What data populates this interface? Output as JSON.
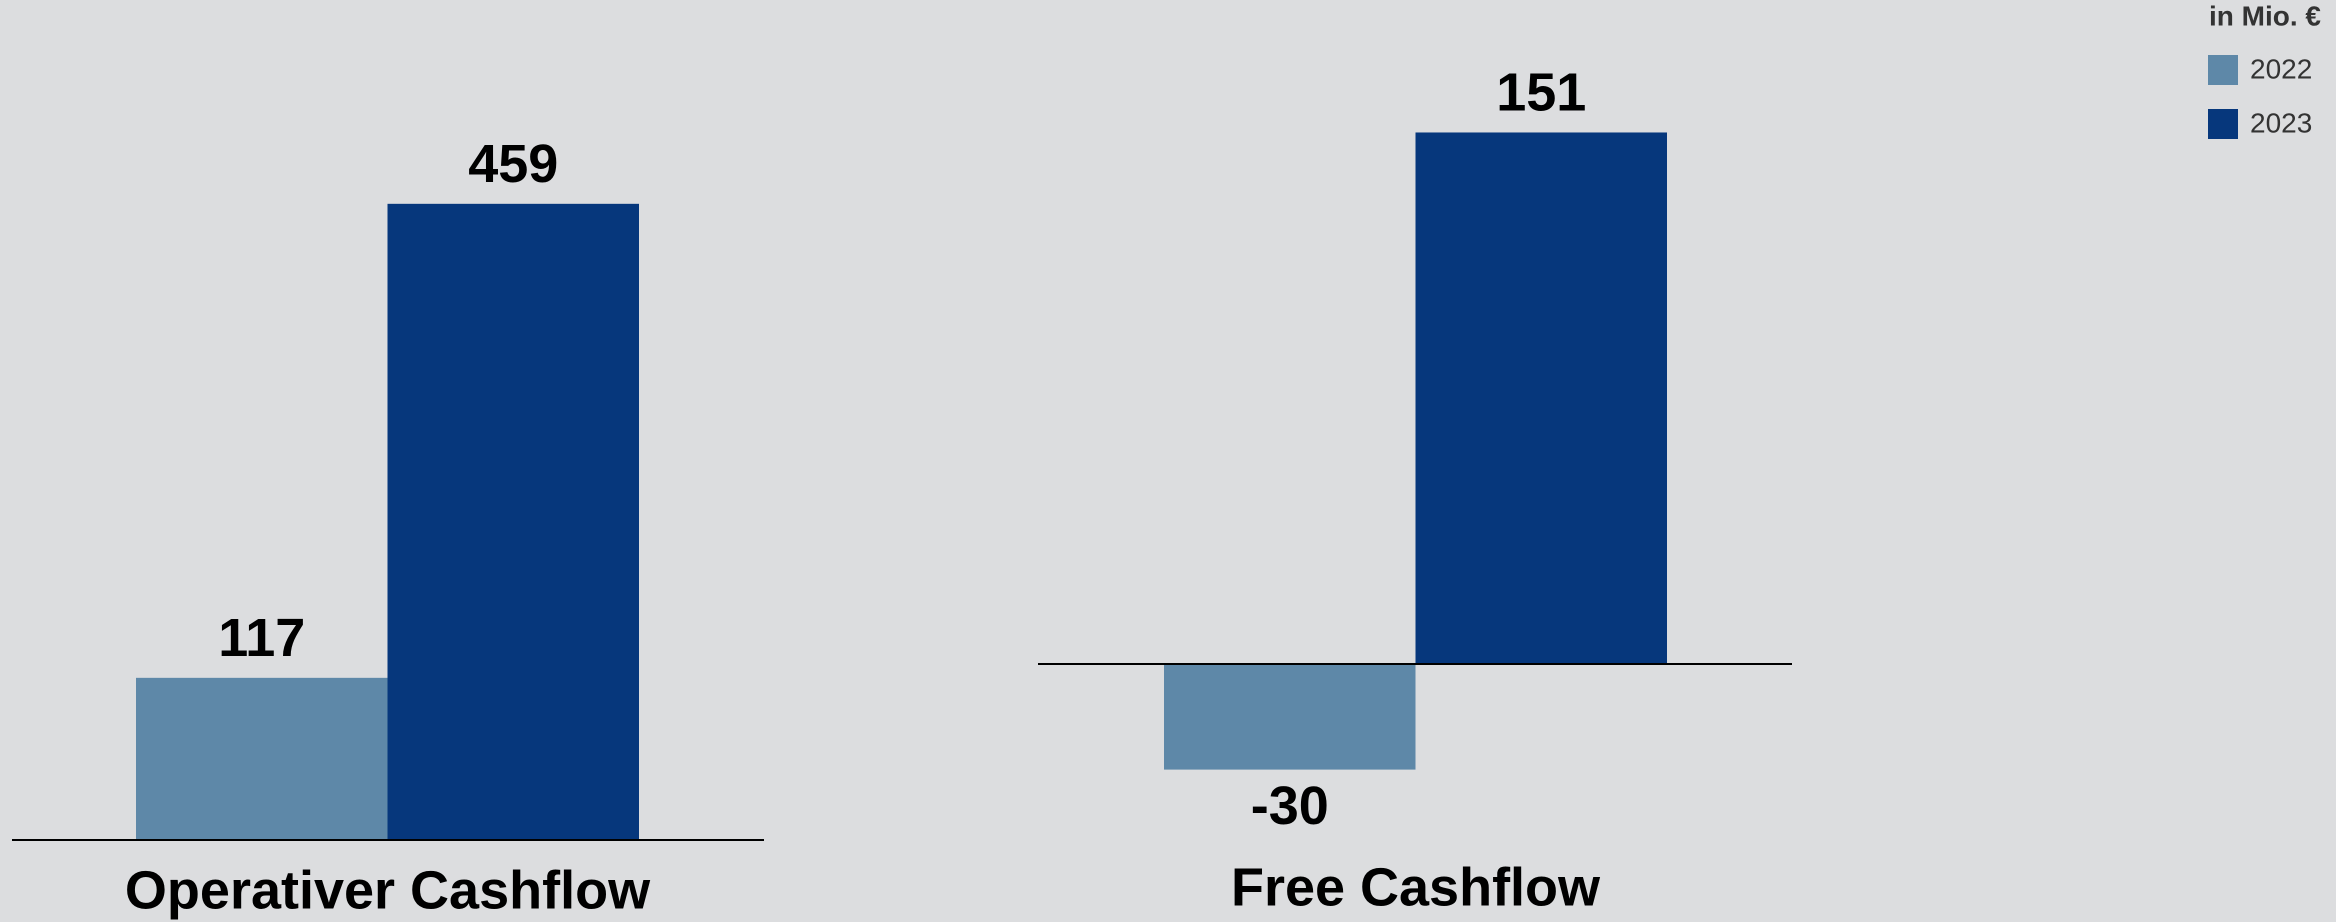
{
  "legend": {
    "title": "in Mio. €",
    "items": [
      {
        "name": "2022",
        "color": "#5e88a8"
      },
      {
        "name": "2023",
        "color": "#06377c"
      }
    ]
  },
  "chart_data": [
    {
      "type": "bar",
      "categories": [
        "Operativer Cashflow"
      ],
      "series": [
        {
          "values": [
            117
          ]
        },
        {
          "values": [
            459
          ]
        }
      ],
      "ylim": [
        0,
        500
      ]
    },
    {
      "type": "bar",
      "categories": [
        "Free Cashflow"
      ],
      "series": [
        {
          "values": [
            -30
          ]
        },
        {
          "values": [
            151
          ]
        }
      ],
      "ylim": [
        -50,
        170
      ]
    }
  ]
}
